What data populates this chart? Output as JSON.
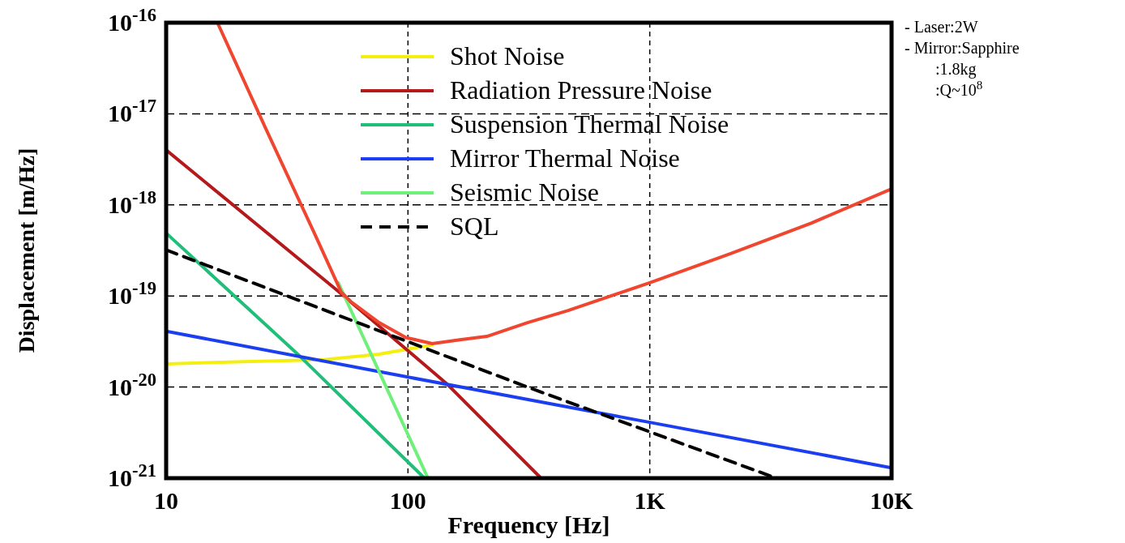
{
  "chart_data": {
    "type": "line",
    "xlabel": "Frequency [Hz]",
    "ylabel": "Displacement [m/Hz]",
    "log": "xy",
    "xlim": [
      10,
      10000
    ],
    "xticks": [
      10,
      100,
      {
        "value": 1000,
        "label": "1K"
      },
      {
        "value": 10000,
        "label": "10K"
      }
    ],
    "ylim": [
      1e-21,
      1e-16
    ],
    "yticks": [
      {
        "value": 1e-21,
        "label": "10$^{-21}$"
      },
      {
        "value": 1e-20,
        "label": "10$^{-20}$"
      },
      {
        "value": 1e-19,
        "label": "10$^{-19}$"
      },
      {
        "value": 1e-18,
        "label": "10$^{-18}$"
      },
      {
        "value": 1e-17,
        "label": "10$^{-17}$"
      },
      {
        "value": 1e-16,
        "label": "10$^{-16}$"
      }
    ],
    "grid": true,
    "legend": "top",
    "series": [
      {
        "name": "Shot Noise",
        "color": "#f5ef10",
        "x": [
          10,
          21,
          45,
          76,
          126
        ],
        "values": [
          1.8e-20,
          1.9e-20,
          2e-20,
          2.3e-20,
          2.9e-20
        ]
      },
      {
        "name": "Radiation Pressure Noise",
        "color": "#b5191b",
        "x": [
          10,
          50,
          144,
          355
        ],
        "values": [
          4e-18,
          1.2e-19,
          1.1e-20,
          1e-21
        ]
      },
      {
        "name": "Suspension Thermal Noise",
        "color": "#1fbf7a",
        "x": [
          10,
          35,
          117
        ],
        "values": [
          4.9e-19,
          2.3e-20,
          1e-21
        ]
      },
      {
        "name": "Mirror Thermal Noise",
        "color": "#1a3ef0",
        "x": [
          10,
          98,
          1000,
          10000
        ],
        "values": [
          4.1e-20,
          1.3e-20,
          4.1e-21,
          1.3e-21
        ]
      },
      {
        "name": "Seismic Noise",
        "color": "#6ef07a",
        "x": [
          51.5,
          121
        ],
        "values": [
          1.4e-19,
          1e-21
        ]
      },
      {
        "name": "SQL",
        "color": "#000000",
        "line_style": "dashed",
        "x": [
          10,
          312,
          3340
        ],
        "values": [
          3.2e-19,
          1e-20,
          1e-21
        ]
      },
      {
        "color": "#f0452e",
        "x": [
          16.3,
          26,
          41,
          53,
          58,
          76,
          98,
          126,
          164,
          212,
          312,
          457,
          1000,
          2150,
          4650,
          10000
        ],
        "values": [
          1e-16,
          6.6e-18,
          4.9e-19,
          1.1e-19,
          8.7e-20,
          5.1e-20,
          3.5e-20,
          3e-20,
          3.3e-20,
          3.6e-20,
          5.1e-20,
          6.9e-20,
          1.4e-19,
          2.9e-19,
          6.3e-19,
          1.5e-18
        ]
      }
    ],
    "annotations": [
      "- Laser:2W",
      "- Mirror:Sapphire",
      ":1.8kg",
      ":Q~10$^{8}$"
    ]
  }
}
